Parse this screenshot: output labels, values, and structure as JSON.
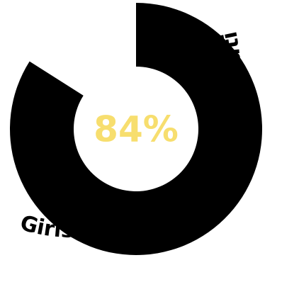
{
  "chart_data": {
    "type": "pie",
    "style": "donut",
    "values": [
      84
    ],
    "max": 100,
    "value_label": "84%",
    "caption": "Girls increasing healthy relationships",
    "colors": {
      "ring": "#000000",
      "value_text": "#F7DE6E",
      "caption_text": "#000000"
    }
  }
}
